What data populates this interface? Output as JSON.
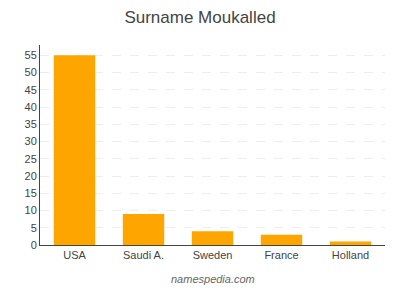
{
  "chart_data": {
    "type": "bar",
    "title": "Surname Moukalled",
    "categories": [
      "USA",
      "Saudi A.",
      "Sweden",
      "France",
      "Holland"
    ],
    "values": [
      55,
      9,
      4,
      3,
      1
    ],
    "color": "#FFA500",
    "ylim": [
      0,
      58
    ],
    "yticks": [
      0,
      5,
      10,
      15,
      20,
      25,
      30,
      35,
      40,
      45,
      50,
      55
    ],
    "grid": true,
    "annotations": [
      "namespedia.com"
    ]
  }
}
